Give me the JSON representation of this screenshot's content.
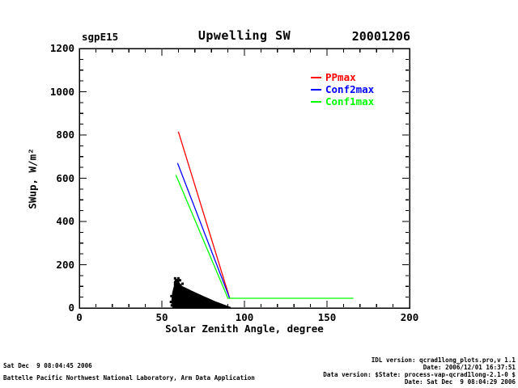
{
  "header": {
    "site": "sgpE15",
    "title": "Upwelling SW",
    "date": "20001206"
  },
  "legend": {
    "items": [
      {
        "label": "PPmax",
        "color": "#ff0000"
      },
      {
        "label": "Conf2max",
        "color": "#0000ff"
      },
      {
        "label": "Conf1max",
        "color": "#00ff00"
      }
    ]
  },
  "chart_data": {
    "type": "line",
    "title": "Upwelling SW",
    "site": "sgpE15",
    "date": "20001206",
    "xlabel": "Solar Zenith Angle, degree",
    "ylabel": "SWup, W/m²",
    "xlim": [
      0,
      200
    ],
    "ylim": [
      0,
      1200
    ],
    "x_major_tick": 50,
    "x_minor_tick": 10,
    "y_major_tick": 200,
    "y_minor_tick": 50,
    "grid": "off",
    "legend_position": "upper-right-inside",
    "axis_color": "#000000",
    "series": [
      {
        "name": "PPmax",
        "color": "#ff0000",
        "points": [
          [
            60,
            815
          ],
          [
            91,
            47
          ]
        ]
      },
      {
        "name": "Conf2max",
        "color": "#0000ff",
        "points": [
          [
            59.5,
            670
          ],
          [
            91,
            46
          ]
        ]
      },
      {
        "name": "Conf1max",
        "color": "#00ff00",
        "points": [
          [
            58.5,
            615
          ],
          [
            90,
            45
          ],
          [
            166,
            45
          ]
        ]
      }
    ],
    "scatter": {
      "name": "measured SWup observations",
      "color": "#000000",
      "outline": [
        [
          56.5,
          5
        ],
        [
          56,
          35
        ],
        [
          56.5,
          70
        ],
        [
          57.5,
          100
        ],
        [
          57.5,
          120
        ],
        [
          58.5,
          134
        ],
        [
          60,
          130
        ],
        [
          60.5,
          115
        ],
        [
          61.5,
          108
        ],
        [
          62,
          100
        ],
        [
          64,
          93
        ],
        [
          68,
          78
        ],
        [
          74,
          57
        ],
        [
          82,
          30
        ],
        [
          91.5,
          3
        ],
        [
          91.5,
          0
        ],
        [
          56.5,
          0
        ]
      ],
      "speckles": [
        [
          55.5,
          28
        ],
        [
          55.8,
          55
        ],
        [
          56,
          12
        ],
        [
          61,
          128
        ],
        [
          62.5,
          112
        ],
        [
          73,
          30
        ],
        [
          62,
          2
        ],
        [
          58,
          137
        ],
        [
          60,
          137
        ],
        [
          56.4,
          26
        ]
      ]
    }
  },
  "footer": {
    "left_line1": "Sat Dec  9 08:04:45 2006",
    "left_line2": "Battelle Pacific Northwest National Laboratory, Arm Data Application",
    "right_line1": "IDL version: qcrad1long_plots.pro,v 1.1",
    "right_line2": "Date: 2006/12/01 16:37:51",
    "right_line3": "Data version: $State: process-vap-qcrad1long-2.1-0 $",
    "right_line4": "Date: Sat Dec  9 08:04:29 2006"
  }
}
